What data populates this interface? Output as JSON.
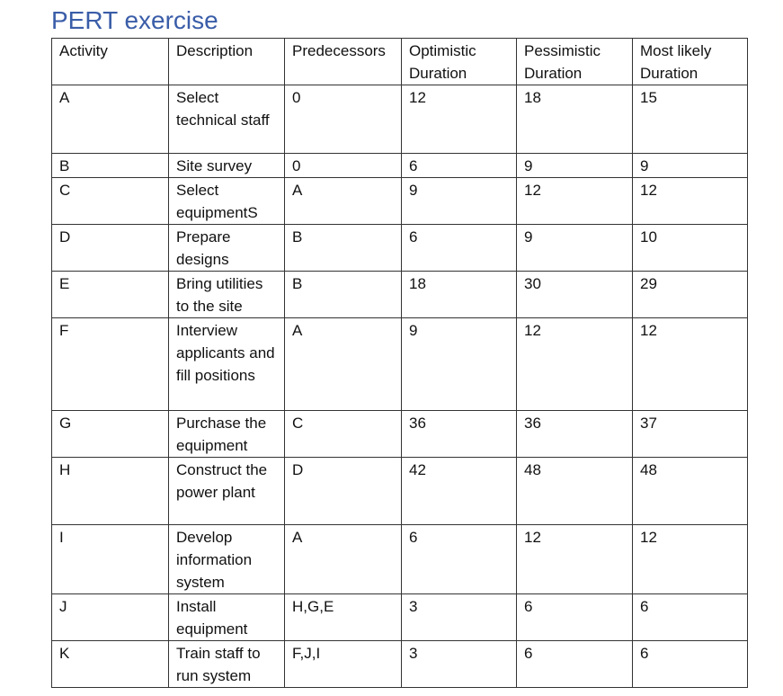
{
  "header": {
    "title": "PERT exercise"
  },
  "table": {
    "columns": [
      "Activity",
      "Description",
      "Predecessors",
      "Optimistic Duration",
      "Pessimistic Duration",
      "Most likely Duration"
    ],
    "rows": [
      [
        "A",
        "Select technical staff",
        "0",
        12,
        18,
        15
      ],
      [
        "B",
        "Site survey",
        "0",
        6,
        9,
        9
      ],
      [
        "C",
        "Select equipmentS",
        "A",
        9,
        12,
        12
      ],
      [
        "D",
        "Prepare designs",
        "B",
        6,
        9,
        10
      ],
      [
        "E",
        "Bring utilities to the site",
        "B",
        18,
        30,
        29
      ],
      [
        "F",
        "Interview applicants and fill positions",
        "A",
        9,
        12,
        12
      ],
      [
        "G",
        "Purchase the equipment",
        "C",
        36,
        36,
        37
      ],
      [
        "H",
        "Construct the power plant",
        "D",
        42,
        48,
        48
      ],
      [
        "I",
        "Develop information system",
        "A",
        6,
        12,
        12
      ],
      [
        "J",
        "Install equipment",
        "H,G,E",
        3,
        6,
        6
      ],
      [
        "K",
        "Train staff to run system",
        "F,J,I",
        3,
        6,
        6
      ]
    ]
  }
}
